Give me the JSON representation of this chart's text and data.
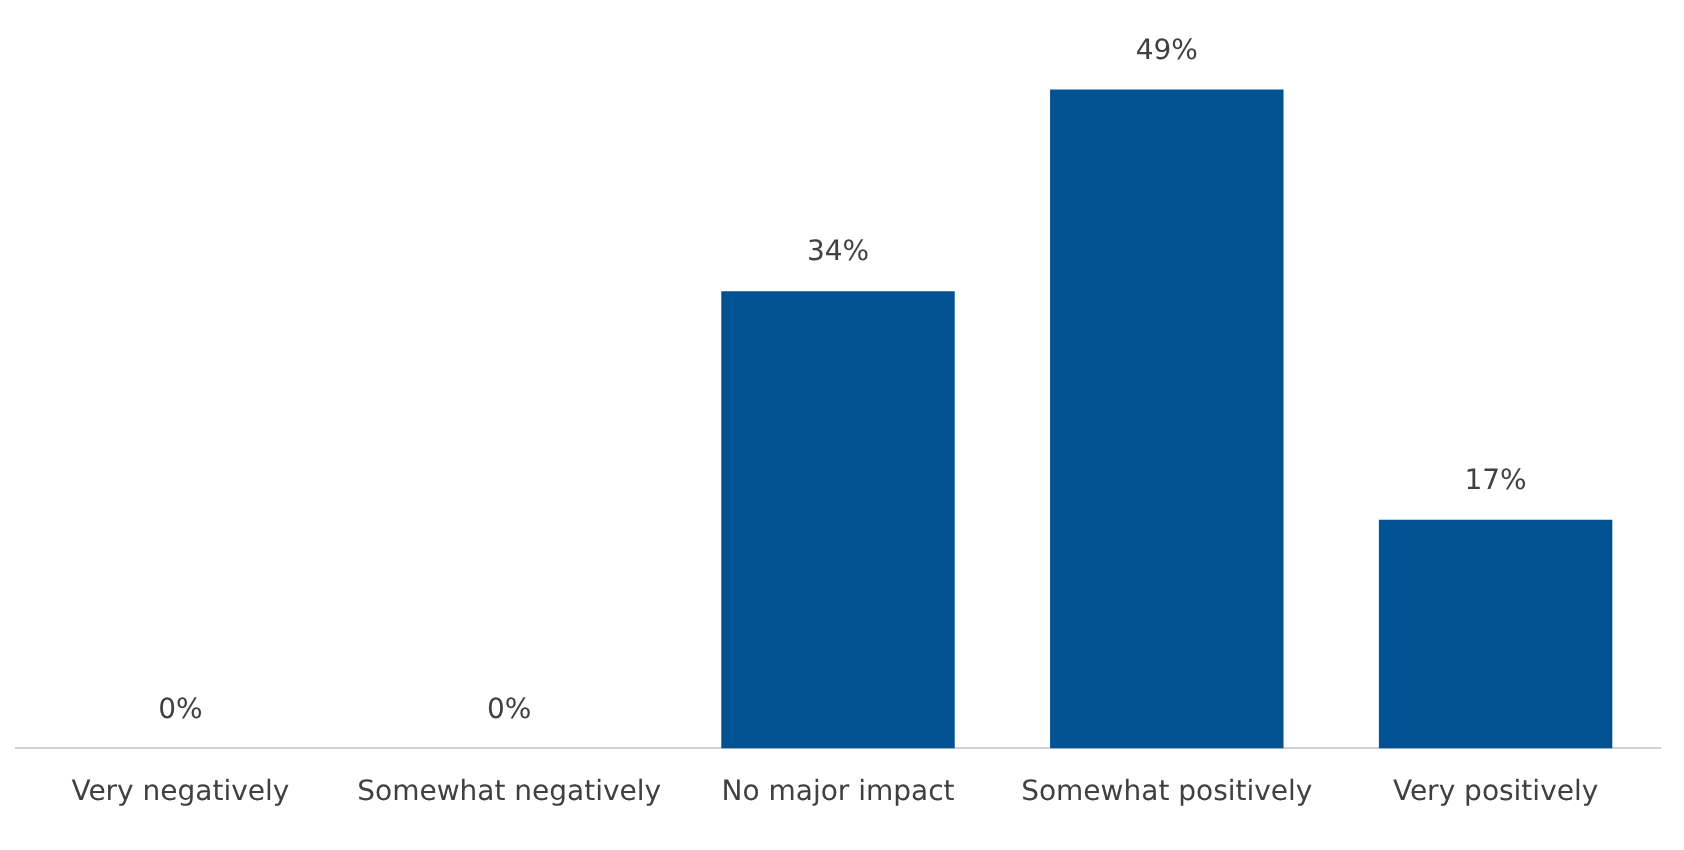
{
  "chart_data": {
    "type": "bar",
    "categories": [
      "Very negatively",
      "Somewhat negatively",
      "No major impact",
      "Somewhat positively",
      "Very positively"
    ],
    "values": [
      0,
      0,
      34,
      49,
      17
    ],
    "value_labels": [
      "0%",
      "0%",
      "34%",
      "49%",
      "17%"
    ],
    "color": "#005293",
    "grid": false,
    "legend": false
  }
}
